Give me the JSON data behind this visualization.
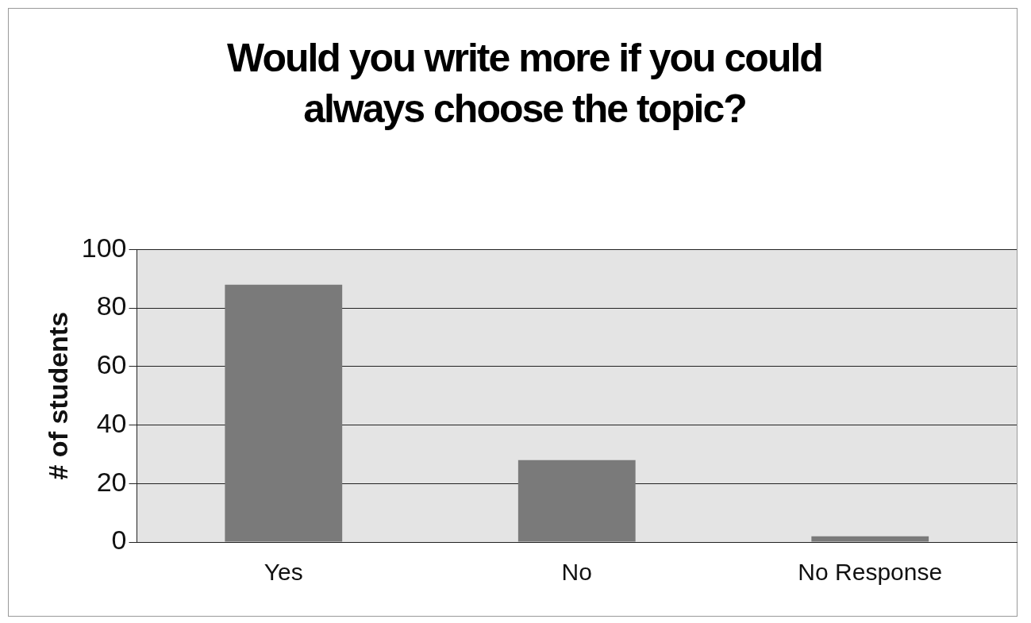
{
  "chart_data": {
    "type": "bar",
    "title": "Would you write more if you could always choose the topic?",
    "ylabel": "# of students",
    "categories": [
      "Yes",
      "No",
      "No Response"
    ],
    "values": [
      88,
      28,
      2
    ],
    "color": "#7a7a7a",
    "ylim": [
      0,
      100
    ],
    "yticks": [
      0,
      20,
      40,
      60,
      80,
      100
    ],
    "grid": "y",
    "legend": false
  }
}
